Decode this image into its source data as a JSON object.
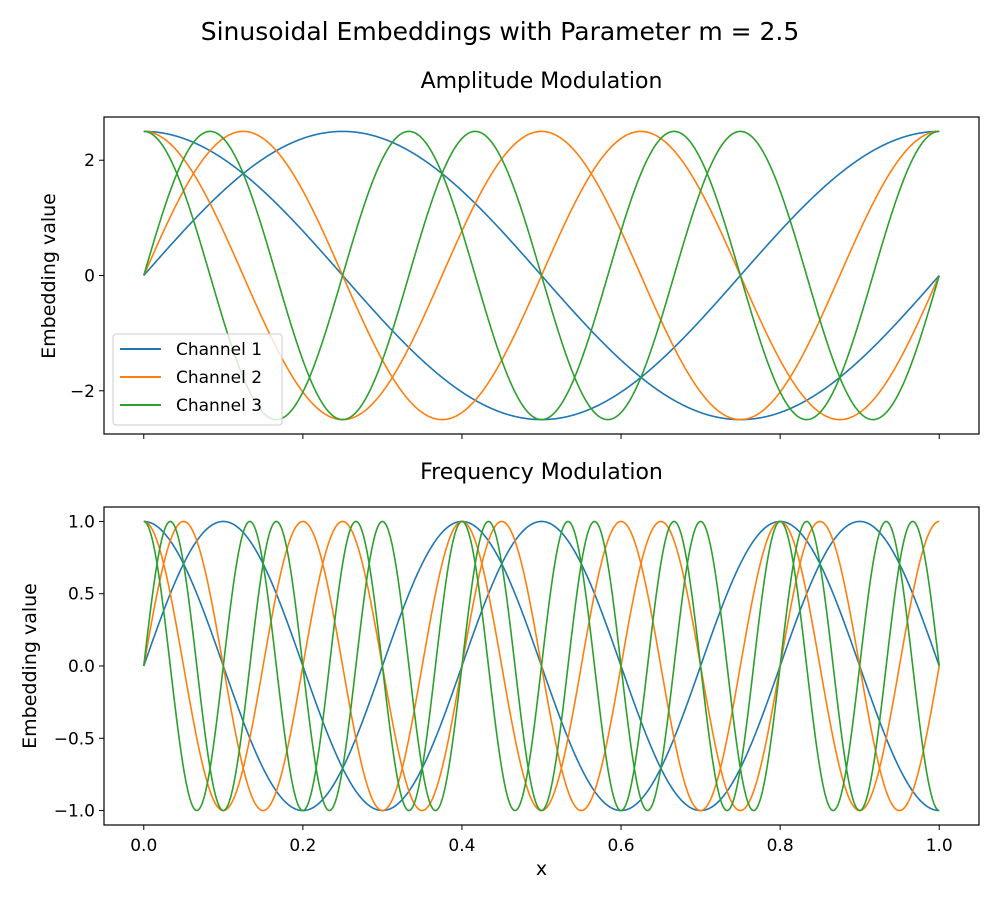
{
  "suptitle": "Sinusoidal Embeddings with Parameter m = 2.5",
  "colors": {
    "channel_1": "#1f77b4",
    "channel_2": "#ff7f0e",
    "channel_3": "#2ca02c",
    "axes": "#000000",
    "legend_border": "#cccccc"
  },
  "chart_data": [
    {
      "type": "line",
      "title": "Amplitude Modulation",
      "xlabel": "",
      "ylabel": "Embedding value",
      "xlim": [
        -0.05,
        1.05
      ],
      "ylim": [
        -2.75,
        2.75
      ],
      "xticks": [
        0.0,
        0.2,
        0.4,
        0.6,
        0.8,
        1.0
      ],
      "xtick_labels": [
        "",
        "",
        "",
        "",
        "",
        ""
      ],
      "yticks": [
        -2,
        0,
        2
      ],
      "ytick_labels": [
        "−2",
        "0",
        "2"
      ],
      "grid": false,
      "legend": {
        "placement": "lower-left",
        "entries": [
          "Channel 1",
          "Channel 2",
          "Channel 3"
        ]
      },
      "x_range": [
        0,
        1
      ],
      "series": [
        {
          "name": "Channel 1",
          "color_key": "channel_1",
          "function": "sin",
          "amplitude": 2.5,
          "frequency": 1
        },
        {
          "name": "Channel 1",
          "color_key": "channel_1",
          "function": "cos",
          "amplitude": 2.5,
          "frequency": 1
        },
        {
          "name": "Channel 2",
          "color_key": "channel_2",
          "function": "sin",
          "amplitude": 2.5,
          "frequency": 2
        },
        {
          "name": "Channel 2",
          "color_key": "channel_2",
          "function": "cos",
          "amplitude": 2.5,
          "frequency": 2
        },
        {
          "name": "Channel 3",
          "color_key": "channel_3",
          "function": "sin",
          "amplitude": 2.5,
          "frequency": 3
        },
        {
          "name": "Channel 3",
          "color_key": "channel_3",
          "function": "cos",
          "amplitude": 2.5,
          "frequency": 3
        }
      ]
    },
    {
      "type": "line",
      "title": "Frequency Modulation",
      "xlabel": "x",
      "ylabel": "Embedding value",
      "xlim": [
        -0.05,
        1.05
      ],
      "ylim": [
        -1.1,
        1.1
      ],
      "xticks": [
        0.0,
        0.2,
        0.4,
        0.6,
        0.8,
        1.0
      ],
      "xtick_labels": [
        "0.0",
        "0.2",
        "0.4",
        "0.6",
        "0.8",
        "1.0"
      ],
      "yticks": [
        -1.0,
        -0.5,
        0.0,
        0.5,
        1.0
      ],
      "ytick_labels": [
        "−1.0",
        "−0.5",
        "0.0",
        "0.5",
        "1.0"
      ],
      "grid": false,
      "x_range": [
        0,
        1
      ],
      "series": [
        {
          "name": "Channel 1",
          "color_key": "channel_1",
          "function": "sin",
          "amplitude": 1,
          "frequency": 2.5
        },
        {
          "name": "Channel 1",
          "color_key": "channel_1",
          "function": "cos",
          "amplitude": 1,
          "frequency": 2.5
        },
        {
          "name": "Channel 2",
          "color_key": "channel_2",
          "function": "sin",
          "amplitude": 1,
          "frequency": 5
        },
        {
          "name": "Channel 2",
          "color_key": "channel_2",
          "function": "cos",
          "amplitude": 1,
          "frequency": 5
        },
        {
          "name": "Channel 3",
          "color_key": "channel_3",
          "function": "sin",
          "amplitude": 1,
          "frequency": 7.5
        },
        {
          "name": "Channel 3",
          "color_key": "channel_3",
          "function": "cos",
          "amplitude": 1,
          "frequency": 7.5
        }
      ]
    }
  ]
}
